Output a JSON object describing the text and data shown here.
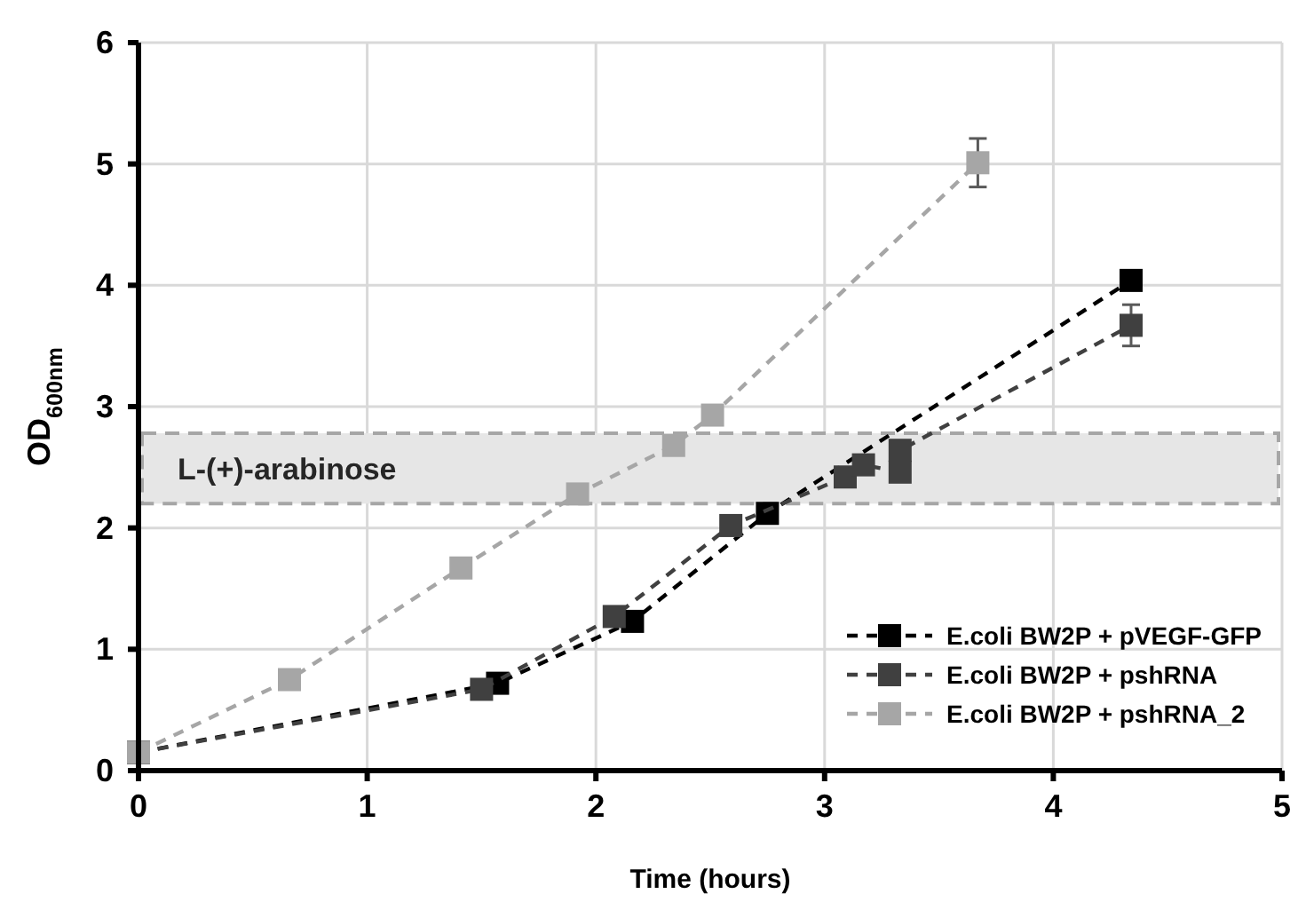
{
  "chart_data": {
    "type": "line",
    "xlabel": "Time (hours)",
    "ylabel": "OD$_{600nm}$",
    "xlim": [
      0,
      5
    ],
    "xticks": [
      0,
      1,
      2,
      3,
      4,
      5
    ],
    "ylim": [
      0,
      6
    ],
    "yticks": [
      0,
      1,
      2,
      3,
      4,
      5,
      6
    ],
    "grid": true,
    "legend": "bottom right",
    "marker": "square",
    "line_style": "dashed",
    "bands": [
      {
        "axis": "y",
        "from": 2.2,
        "to": 2.78,
        "label": "L-(+)-arabinose",
        "color": "#e6e6e6"
      }
    ],
    "series": [
      {
        "name": "E.coli BW2P + pVEGF-GFP",
        "color": "#000000",
        "x": [
          0,
          1.57,
          2.16,
          2.75,
          4.34
        ],
        "values": [
          0.15,
          0.72,
          1.23,
          2.12,
          4.04
        ]
      },
      {
        "name": "E.coli BW2P + pshRNA",
        "color": "#404040",
        "x": [
          0,
          1.5,
          2.08,
          2.59,
          3.09,
          3.17,
          3.33,
          3.33,
          4.34
        ],
        "values": [
          0.15,
          0.67,
          1.27,
          2.02,
          2.42,
          2.52,
          2.46,
          2.64,
          3.67
        ],
        "errors": [
          null,
          null,
          null,
          null,
          null,
          null,
          null,
          null,
          0.17
        ]
      },
      {
        "name": "E.coli BW2P + pshRNA_2",
        "color": "#a6a6a6",
        "x": [
          0,
          0.66,
          1.41,
          1.92,
          2.34,
          2.51,
          3.67
        ],
        "values": [
          0.15,
          0.75,
          1.67,
          2.28,
          2.68,
          2.93,
          5.01
        ],
        "errors": [
          null,
          null,
          null,
          null,
          null,
          null,
          0.2
        ]
      }
    ]
  }
}
